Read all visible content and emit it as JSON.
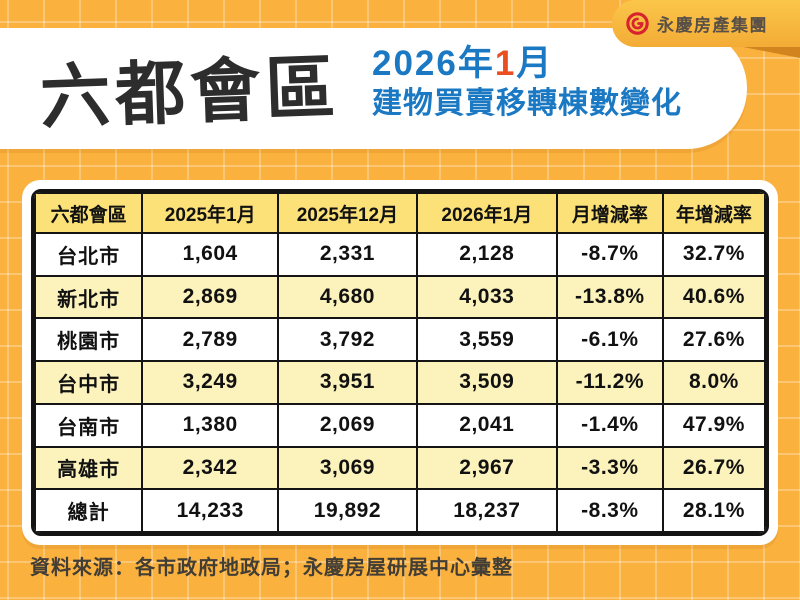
{
  "header": {
    "title": "六都會區",
    "subtitle": {
      "line1_prefix": "2026年",
      "line1_highlight": "1",
      "line1_suffix": "月",
      "line2": "建物買賣移轉棟數變化"
    },
    "logo": {
      "icon": "yungching-ring-icon",
      "text": "永慶房產集團"
    }
  },
  "table": {
    "columns": [
      "六都會區",
      "2025年1月",
      "2025年12月",
      "2026年1月",
      "月增減率",
      "年增減率"
    ],
    "rows": [
      [
        "台北市",
        "1,604",
        "2,331",
        "2,128",
        "-8.7%",
        "32.7%"
      ],
      [
        "新北市",
        "2,869",
        "4,680",
        "4,033",
        "-13.8%",
        "40.6%"
      ],
      [
        "桃園市",
        "2,789",
        "3,792",
        "3,559",
        "-6.1%",
        "27.6%"
      ],
      [
        "台中市",
        "3,249",
        "3,951",
        "3,509",
        "-11.2%",
        "8.0%"
      ],
      [
        "台南市",
        "1,380",
        "2,069",
        "2,041",
        "-1.4%",
        "47.9%"
      ],
      [
        "高雄市",
        "2,342",
        "3,069",
        "2,967",
        "-3.3%",
        "26.7%"
      ],
      [
        "總計",
        "14,233",
        "19,892",
        "18,237",
        "-8.3%",
        "28.1%"
      ]
    ]
  },
  "footer": {
    "source": "資料來源：各市政府地政局；永慶房屋研展中心彙整"
  },
  "colors": {
    "background": "#FBB13E",
    "grid_line": "#FFD27A",
    "panel_white": "#FFFFFF",
    "table_header_yellow": "#FBE178",
    "row_alt_yellow": "#FBF2BC",
    "border_black": "#141414",
    "title_black": "#2D2D2D",
    "subtitle_blue": "#1B78C3",
    "highlight_orange": "#EA501F",
    "brand_red": "#D7232E",
    "brand_text_gray": "#584F46",
    "badge_gold": "#F7B83E",
    "fold_orange": "#D2851F"
  },
  "chart_data": {
    "type": "table",
    "title": "六都會區 2026年1月 建物買賣移轉棟數變化",
    "columns": [
      "六都會區",
      "2025年1月",
      "2025年12月",
      "2026年1月",
      "月增減率",
      "年增減率"
    ],
    "rows": [
      [
        "台北市",
        1604,
        2331,
        2128,
        "-8.7%",
        "32.7%"
      ],
      [
        "新北市",
        2869,
        4680,
        4033,
        "-13.8%",
        "40.6%"
      ],
      [
        "桃園市",
        2789,
        3792,
        3559,
        "-6.1%",
        "27.6%"
      ],
      [
        "台中市",
        3249,
        3951,
        3509,
        "-11.2%",
        "8.0%"
      ],
      [
        "台南市",
        1380,
        2069,
        2041,
        "-1.4%",
        "47.9%"
      ],
      [
        "高雄市",
        2342,
        3069,
        2967,
        "-3.3%",
        "26.7%"
      ],
      [
        "總計",
        14233,
        19892,
        18237,
        "-8.3%",
        "28.1%"
      ]
    ],
    "source_note": "資料來源：各市政府地政局；永慶房屋研展中心彙整"
  }
}
